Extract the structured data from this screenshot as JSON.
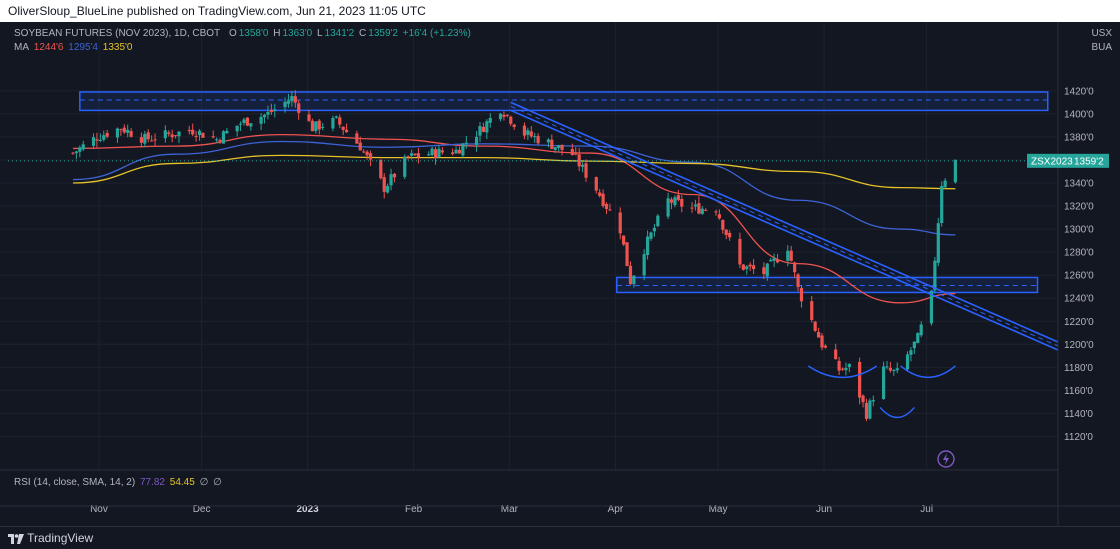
{
  "header": {
    "publisher": "OliverSloup_BlueLine published on TradingView.com, Jun 21, 2023 11:05 UTC"
  },
  "legend": {
    "symbol": "SOYBEAN FUTURES (NOV 2023), 1D, CBOT",
    "o_label": "O",
    "o": "1358'0",
    "h_label": "H",
    "h": "1363'0",
    "l_label": "L",
    "l": "1341'2",
    "c_label": "C",
    "c": "1359'2",
    "change": "+16'4 (+1.23%)",
    "ma_label": "MA",
    "ma1": "1244'6",
    "ma2": "1295'4",
    "ma3": "1335'0"
  },
  "currency": {
    "line1": "USX",
    "line2": "BUA"
  },
  "last_price": {
    "symbol": "ZSX2023",
    "price": "1359'2"
  },
  "rsi": {
    "label": "RSI (14, close, SMA, 14, 2)",
    "v1": "77.82",
    "v2": "54.45",
    "v3": "∅",
    "v4": "∅"
  },
  "footer": {
    "brand": "TradingView"
  },
  "colors": {
    "background": "#131722",
    "up": "#26a69a",
    "down": "#ef5350",
    "ma1": "#ef5350",
    "ma2": "#3d63d6",
    "ma3": "#e6c229",
    "zone": "#2962ff",
    "rsi_v1": "#7e57c2",
    "rsi_v2": "#e6c229"
  },
  "chart_data": {
    "type": "candlestick",
    "title": "SOYBEAN FUTURES (NOV 2023), 1D, CBOT",
    "x_ticks": [
      "Nov",
      "Dec",
      "2023",
      "Feb",
      "Mar",
      "Apr",
      "May",
      "Jun",
      "Jul"
    ],
    "y_ticks": [
      "1420'0",
      "1400'0",
      "1380'0",
      "1360'0",
      "1340'0",
      "1320'0",
      "1300'0",
      "1280'0",
      "1260'0",
      "1240'0",
      "1220'0",
      "1200'0",
      "1180'0",
      "1160'0",
      "1140'0",
      "1120'0"
    ],
    "ylim": [
      1110,
      1432
    ],
    "anchors": [
      [
        "2022-11-01",
        1366
      ],
      [
        "2022-11-08",
        1380
      ],
      [
        "2022-11-15",
        1388
      ],
      [
        "2022-11-22",
        1378
      ],
      [
        "2022-11-29",
        1382
      ],
      [
        "2022-12-06",
        1386
      ],
      [
        "2022-12-13",
        1378
      ],
      [
        "2022-12-20",
        1392
      ],
      [
        "2022-12-28",
        1400
      ],
      [
        "2023-01-04",
        1414
      ],
      [
        "2023-01-10",
        1388
      ],
      [
        "2023-01-17",
        1394
      ],
      [
        "2023-01-24",
        1372
      ],
      [
        "2023-01-31",
        1336
      ],
      [
        "2023-02-07",
        1362
      ],
      [
        "2023-02-14",
        1366
      ],
      [
        "2023-02-21",
        1368
      ],
      [
        "2023-02-28",
        1386
      ],
      [
        "2023-03-06",
        1405
      ],
      [
        "2023-03-13",
        1383
      ],
      [
        "2023-03-20",
        1375
      ],
      [
        "2023-03-27",
        1365
      ],
      [
        "2023-04-03",
        1335
      ],
      [
        "2023-04-10",
        1300
      ],
      [
        "2023-04-13",
        1255
      ],
      [
        "2023-04-17",
        1283
      ],
      [
        "2023-04-24",
        1325
      ],
      [
        "2023-05-01",
        1318
      ],
      [
        "2023-05-08",
        1318
      ],
      [
        "2023-05-15",
        1268
      ],
      [
        "2023-05-22",
        1262
      ],
      [
        "2023-05-29",
        1285
      ],
      [
        "2023-06-01",
        1248
      ],
      [
        "2023-06-08",
        1200
      ],
      [
        "2023-06-13",
        1178
      ],
      [
        "2023-06-16",
        1180
      ],
      [
        "2023-06-21",
        1140
      ],
      [
        "2023-06-26",
        1178
      ],
      [
        "2023-06-30",
        1175
      ],
      [
        "2023-07-06",
        1205
      ],
      [
        "2023-07-10",
        1242
      ],
      [
        "2023-07-13",
        1340
      ],
      [
        "2023-07-17",
        1359
      ]
    ],
    "moving_averages": [
      {
        "name": "MA",
        "value": "1244'6",
        "color": "#ef5350",
        "points": [
          [
            "2022-11-01",
            1370
          ],
          [
            "2022-12-01",
            1372
          ],
          [
            "2023-01-01",
            1382
          ],
          [
            "2023-02-01",
            1378
          ],
          [
            "2023-03-01",
            1372
          ],
          [
            "2023-04-01",
            1366
          ],
          [
            "2023-05-01",
            1330
          ],
          [
            "2023-06-01",
            1270
          ],
          [
            "2023-07-01",
            1236
          ],
          [
            "2023-07-17",
            1244
          ]
        ]
      },
      {
        "name": "MA",
        "value": "1295'4",
        "color": "#3d63d6",
        "points": [
          [
            "2022-11-01",
            1343
          ],
          [
            "2022-12-01",
            1365
          ],
          [
            "2023-01-01",
            1376
          ],
          [
            "2023-02-01",
            1371
          ],
          [
            "2023-03-01",
            1374
          ],
          [
            "2023-04-01",
            1372
          ],
          [
            "2023-05-01",
            1358
          ],
          [
            "2023-06-01",
            1325
          ],
          [
            "2023-07-01",
            1300
          ],
          [
            "2023-07-17",
            1295
          ]
        ]
      },
      {
        "name": "MA",
        "value": "1335'0",
        "color": "#e6c229",
        "points": [
          [
            "2022-11-01",
            1340
          ],
          [
            "2022-12-01",
            1357
          ],
          [
            "2023-01-01",
            1364
          ],
          [
            "2023-02-01",
            1362
          ],
          [
            "2023-03-01",
            1362
          ],
          [
            "2023-04-01",
            1359
          ],
          [
            "2023-05-01",
            1357
          ],
          [
            "2023-06-01",
            1350
          ],
          [
            "2023-07-01",
            1336
          ],
          [
            "2023-07-17",
            1335
          ]
        ]
      }
    ],
    "resistance_zone": {
      "from": "2022-11-03",
      "to": "2023-08-13",
      "low": 1403,
      "high": 1419,
      "mid": 1412
    },
    "support_zone": {
      "from": "2023-04-09",
      "to": "2023-08-10",
      "low": 1245,
      "high": 1258,
      "mid": 1251
    },
    "trendline": {
      "from": [
        "2023-03-09",
        1410
      ],
      "to": [
        "2023-08-16",
        1202
      ],
      "offset": 8
    },
    "inverse_head_shoulders": [
      {
        "center": [
          "2023-06-14",
          1176
        ],
        "width_days": 10,
        "depth": 12
      },
      {
        "center": [
          "2023-06-30",
          1140
        ],
        "width_days": 5,
        "depth": 10
      },
      {
        "center": [
          "2023-07-09",
          1176
        ],
        "width_days": 8,
        "depth": 12
      }
    ]
  }
}
